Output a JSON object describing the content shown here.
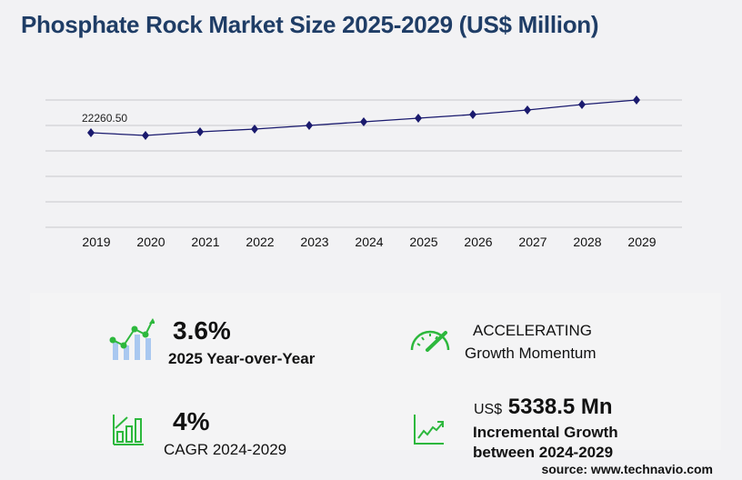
{
  "title": "Phosphate Rock Market Size 2025-2029 (US$ Million)",
  "chart_data": {
    "type": "line",
    "title": "Phosphate Rock Market Size 2025-2029 (US$ Million)",
    "categories": [
      "2019",
      "2020",
      "2021",
      "2022",
      "2023",
      "2024",
      "2025",
      "2026",
      "2027",
      "2028",
      "2029"
    ],
    "values": [
      22260.5,
      21593,
      22483,
      23150,
      24040,
      24930,
      25820,
      26710,
      27822,
      29157,
      30269
    ],
    "data_labels": [
      "22260.50"
    ],
    "xlabel": "",
    "ylabel": "",
    "ylim": [
      -870,
      30270
    ],
    "grid": true,
    "line_color": "#1a1a6e"
  },
  "stats": {
    "yoy_value": "3.6%",
    "yoy_label": "2025 Year-over-Year",
    "momentum_value": "ACCELERATING",
    "momentum_label": "Growth Momentum",
    "cagr_value": "4%",
    "cagr_label": "CAGR 2024-2029",
    "incr_prefix": "US$",
    "incr_value": "5338.5 Mn",
    "incr_label_1": "Incremental Growth",
    "incr_label_2": "between 2024-2029"
  },
  "source": "source: www.technavio.com",
  "colors": {
    "accent_green": "#2db83d",
    "title_blue": "#1f3d66",
    "bar_blue": "#a9c8f0"
  }
}
